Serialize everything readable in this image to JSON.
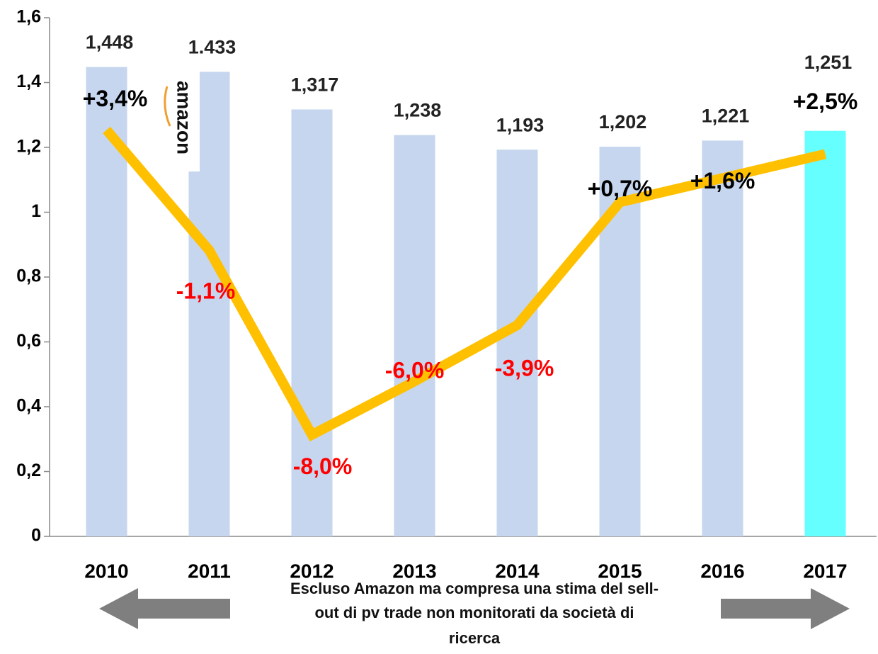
{
  "chart_data": {
    "type": "bar_line",
    "categories": [
      "2010",
      "2011",
      "2012",
      "2013",
      "2014",
      "2015",
      "2016",
      "2017"
    ],
    "series": [
      {
        "type": "bar",
        "values": [
          1.448,
          1.433,
          1.317,
          1.238,
          1.193,
          1.202,
          1.221,
          1.251
        ],
        "value_labels": [
          "1,448",
          "1.433",
          "1,317",
          "1,238",
          "1,193",
          "1,202",
          "1,221",
          "1,251"
        ],
        "colors": [
          "#c6d6ee",
          "#c6d6ee",
          "#c6d6ee",
          "#c6d6ee",
          "#c6d6ee",
          "#c6d6ee",
          "#c6d6ee",
          "#66ffff"
        ]
      },
      {
        "type": "line",
        "axis": "y2",
        "color": "#ffc000",
        "values": [
          3.4,
          -1.1,
          -8.0,
          -6.0,
          -3.9,
          0.7,
          1.6,
          2.5
        ],
        "value_labels": [
          "+3,4%",
          "-1,1%",
          "-8,0%",
          "-6,0%",
          "-3,9%",
          "+0,7%",
          "+1,6%",
          "+2,5%"
        ],
        "label_colors": [
          "#000000",
          "#ff0000",
          "#ff0000",
          "#ff0000",
          "#ff0000",
          "#000000",
          "#000000",
          "#000000"
        ]
      }
    ],
    "ylim": [
      0,
      1.6
    ],
    "yticks": [
      0,
      {
        "value": 0.2,
        "label": "0,2"
      },
      {
        "value": 0.4,
        "label": "0,4"
      },
      {
        "value": 0.6,
        "label": "0,6"
      },
      {
        "value": 0.8,
        "label": "0,8"
      },
      1,
      {
        "value": 1.2,
        "label": "1,2"
      },
      {
        "value": 1.4,
        "label": "1,4"
      },
      {
        "value": 1.6,
        "label": "1,6"
      }
    ],
    "y2lim": [
      -11.8,
      7.6
    ],
    "logo_text": "amazon",
    "annotation": [
      "Escluso Amazon ma compresa una stima del sell-",
      "out  di  pv trade non monitorati da società di",
      "ricerca"
    ]
  }
}
